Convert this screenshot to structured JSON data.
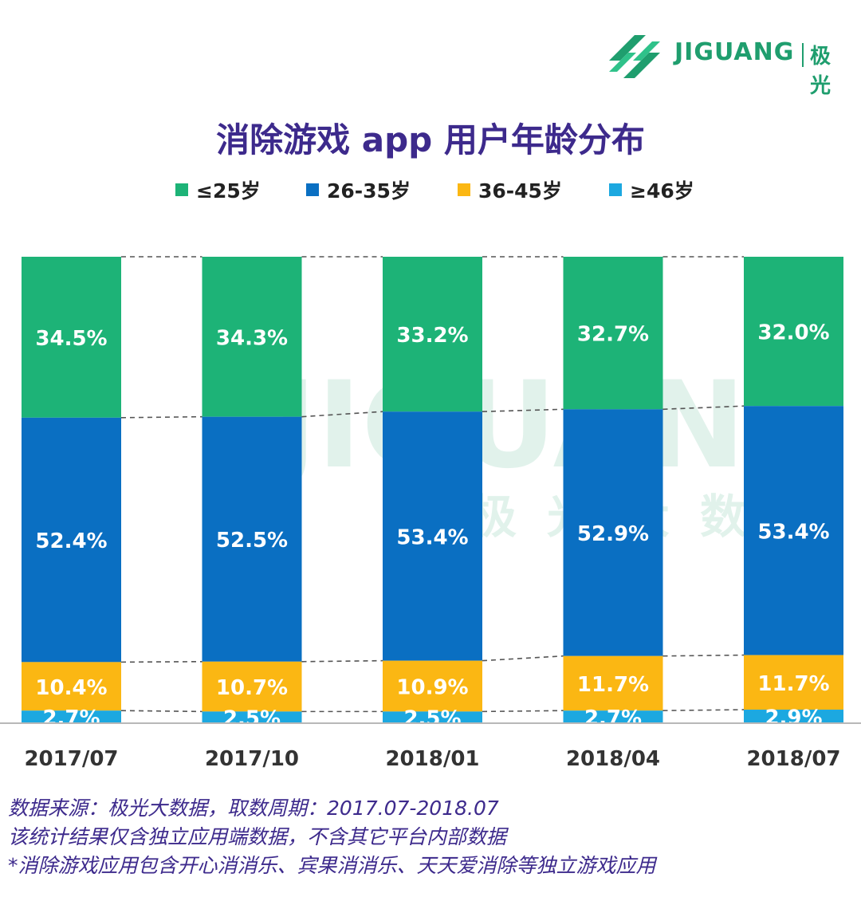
{
  "logo": {
    "text": "JIGUANG",
    "cn": "极光",
    "color": "#1f9e6e"
  },
  "watermark": {
    "text": "JIGUANG",
    "cn": "极光大数据"
  },
  "notes": [
    "数据来源：极光大数据，取数周期：2017.07-2018.07",
    "该统计结果仅含独立应用端数据，不含其它平台内部数据",
    " *消除游戏应用包含开心消消乐、宾果消消乐、天天爱消除等独立游戏应用"
  ],
  "chart_data": {
    "type": "bar",
    "stacked": true,
    "title": "消除游戏 app 用户年龄分布",
    "categories": [
      "2017/07",
      "2017/10",
      "2018/01",
      "2018/04",
      "2018/07"
    ],
    "series": [
      {
        "name": "≤25岁",
        "color": "#1db377",
        "values": [
          34.5,
          34.3,
          33.2,
          32.7,
          32.0
        ],
        "labels": [
          "34.5%",
          "34.3%",
          "33.2%",
          "32.7%",
          "32.0%"
        ]
      },
      {
        "name": "26-35岁",
        "color": "#0a6fc2",
        "values": [
          52.4,
          52.5,
          53.4,
          52.9,
          53.4
        ],
        "labels": [
          "52.4%",
          "52.5%",
          "53.4%",
          "52.9%",
          "53.4%"
        ]
      },
      {
        "name": "36-45岁",
        "color": "#fbb713",
        "values": [
          10.4,
          10.7,
          10.9,
          11.7,
          11.7
        ],
        "labels": [
          "10.4%",
          "10.7%",
          "10.9%",
          "11.7%",
          "11.7%"
        ]
      },
      {
        "name": "≥46岁",
        "color": "#1ca8e0",
        "values": [
          2.7,
          2.5,
          2.5,
          2.7,
          2.9
        ],
        "labels": [
          "2.7%",
          "2.5%",
          "2.5%",
          "2.7%",
          "2.9%"
        ]
      }
    ],
    "ylim": [
      0,
      100
    ],
    "legend_position": "top",
    "grid": false,
    "connector_lines": "dashed"
  }
}
